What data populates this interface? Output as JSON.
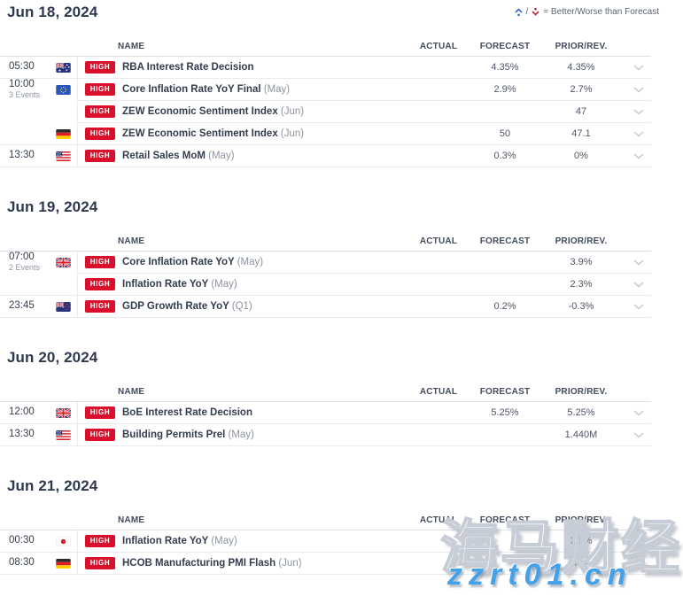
{
  "legend": {
    "separator": "/",
    "text": "= Better/Worse than Forecast",
    "better_color": "#2f6db8",
    "worse_color": "#c41f39"
  },
  "table": {
    "headers": {
      "name": "NAME",
      "actual": "ACTUAL",
      "forecast": "FORECAST",
      "prior": "PRIOR/REV."
    },
    "impact_label": "HIGH",
    "impact_color": "#d90f2b"
  },
  "sections": [
    {
      "date": "Jun 18, 2024",
      "rows": [
        {
          "time": "05:30",
          "note": "",
          "flag": "australia",
          "name": "RBA Interest Rate Decision",
          "period": "",
          "actual": "",
          "forecast": "4.35%",
          "prior": "4.35%",
          "group_end": true
        },
        {
          "time": "10:00",
          "note": "3 Events",
          "flag": "eu",
          "name": "Core Inflation Rate YoY Final",
          "period": "(May)",
          "actual": "",
          "forecast": "2.9%",
          "prior": "2.7%",
          "group_end": false
        },
        {
          "time": "",
          "note": "",
          "flag": "",
          "name": "ZEW Economic Sentiment Index",
          "period": "(Jun)",
          "actual": "",
          "forecast": "",
          "prior": "47",
          "group_end": false
        },
        {
          "time": "",
          "note": "",
          "flag": "germany",
          "name": "ZEW Economic Sentiment Index",
          "period": "(Jun)",
          "actual": "",
          "forecast": "50",
          "prior": "47.1",
          "group_end": true
        },
        {
          "time": "13:30",
          "note": "",
          "flag": "united-states",
          "name": "Retail Sales MoM",
          "period": "(May)",
          "actual": "",
          "forecast": "0.3%",
          "prior": "0%",
          "group_end": true
        }
      ]
    },
    {
      "date": "Jun 19, 2024",
      "rows": [
        {
          "time": "07:00",
          "note": "2 Events",
          "flag": "united-kingdom",
          "name": "Core Inflation Rate YoY",
          "period": "(May)",
          "actual": "",
          "forecast": "",
          "prior": "3.9%",
          "group_end": false
        },
        {
          "time": "",
          "note": "",
          "flag": "",
          "name": "Inflation Rate YoY",
          "period": "(May)",
          "actual": "",
          "forecast": "",
          "prior": "2.3%",
          "group_end": true
        },
        {
          "time": "23:45",
          "note": "",
          "flag": "new-zealand",
          "name": "GDP Growth Rate YoY",
          "period": "(Q1)",
          "actual": "",
          "forecast": "0.2%",
          "prior": "-0.3%",
          "group_end": true
        }
      ]
    },
    {
      "date": "Jun 20, 2024",
      "rows": [
        {
          "time": "12:00",
          "note": "",
          "flag": "united-kingdom",
          "name": "BoE Interest Rate Decision",
          "period": "",
          "actual": "",
          "forecast": "5.25%",
          "prior": "5.25%",
          "group_end": true
        },
        {
          "time": "13:30",
          "note": "",
          "flag": "united-states",
          "name": "Building Permits Prel",
          "period": "(May)",
          "actual": "",
          "forecast": "",
          "prior": "1.440M",
          "group_end": true
        }
      ]
    },
    {
      "date": "Jun 21, 2024",
      "rows": [
        {
          "time": "00:30",
          "note": "",
          "flag": "japan",
          "name": "Inflation Rate YoY",
          "period": "(May)",
          "actual": "",
          "forecast": "",
          "prior": "2.5%",
          "group_end": true
        },
        {
          "time": "08:30",
          "note": "",
          "flag": "germany",
          "name": "HCOB Manufacturing PMI Flash",
          "period": "(Jun)",
          "actual": "",
          "forecast": "",
          "prior": "45.4",
          "group_end": true
        }
      ]
    }
  ],
  "watermark": {
    "brand": "海马财经",
    "site": "zzrt01.cn",
    "site_color": "#41a1ea"
  }
}
